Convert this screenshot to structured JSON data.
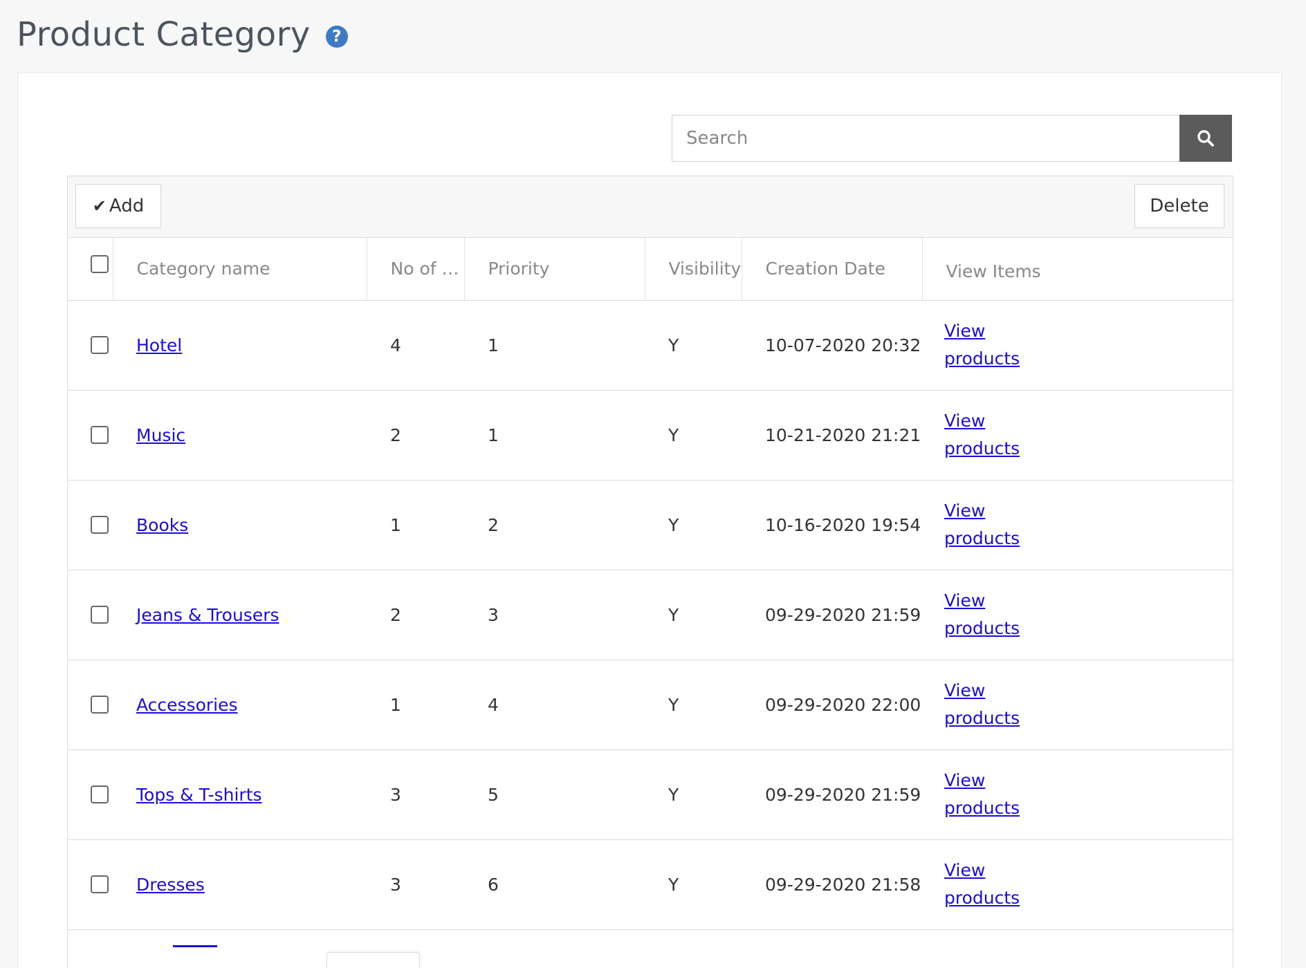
{
  "page": {
    "title": "Product Category"
  },
  "search": {
    "placeholder": "Search",
    "value": ""
  },
  "toolbar": {
    "add_label": "Add",
    "delete_label": "Delete"
  },
  "table": {
    "columns": [
      "Category name",
      "No of p...",
      "Priority",
      "Visibility",
      "Creation Date",
      "View Items"
    ],
    "view_line1": "View",
    "view_line2": "products",
    "rows": [
      {
        "name": "Hotel",
        "count": "4",
        "priority": "1",
        "visibility": "Y",
        "date": "10-07-2020 20:32"
      },
      {
        "name": "Music",
        "count": "2",
        "priority": "1",
        "visibility": "Y",
        "date": "10-21-2020 21:21"
      },
      {
        "name": "Books",
        "count": "1",
        "priority": "2",
        "visibility": "Y",
        "date": "10-16-2020 19:54"
      },
      {
        "name": "Jeans & Trousers",
        "count": "2",
        "priority": "3",
        "visibility": "Y",
        "date": "09-29-2020 21:59"
      },
      {
        "name": "Accessories",
        "count": "1",
        "priority": "4",
        "visibility": "Y",
        "date": "09-29-2020 22:00"
      },
      {
        "name": "Tops & T-shirts",
        "count": "3",
        "priority": "5",
        "visibility": "Y",
        "date": "09-29-2020 21:59"
      },
      {
        "name": "Dresses",
        "count": "3",
        "priority": "6",
        "visibility": "Y",
        "date": "09-29-2020 21:58"
      }
    ]
  },
  "colors": {
    "title": "#4a5560",
    "help_icon": "#3d7bc4",
    "search_button": "#5b5b5b",
    "link": "#1a0dde"
  },
  "icons": {
    "help": "question-circle-icon",
    "search": "magnifier-icon",
    "add": "checkmark-icon"
  }
}
